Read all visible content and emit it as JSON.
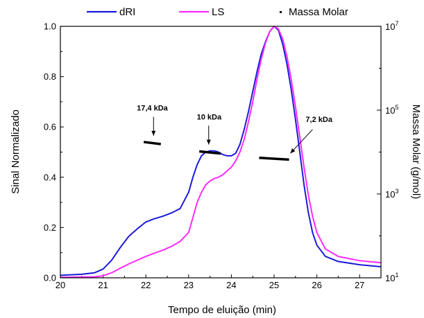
{
  "chart_data": {
    "type": "line",
    "xlabel": "Tempo de eluição (min)",
    "ylabel": "Sinal Normalizado",
    "y2label": "Massa Molar (g/mol)",
    "xlim": [
      20,
      27.5
    ],
    "ylim": [
      0,
      1.0
    ],
    "y2lim_log10": [
      1,
      7
    ],
    "grid": false,
    "legend_position": "top",
    "x_ticks": [
      "20",
      "21",
      "22",
      "23",
      "24",
      "25",
      "26",
      "27"
    ],
    "y_ticks": [
      "0.0",
      "0.2",
      "0.4",
      "0.6",
      "0.8",
      "1.0"
    ],
    "y2_ticks": [
      {
        "base": "10",
        "exp": "1",
        "value": 10
      },
      {
        "base": "10",
        "exp": "3",
        "value": 1000
      },
      {
        "base": "10",
        "exp": "5",
        "value": 100000
      },
      {
        "base": "10",
        "exp": "7",
        "value": 10000000
      }
    ],
    "series": [
      {
        "name": "dRI",
        "color": "#1a1adb",
        "points": [
          [
            20.0,
            0.01
          ],
          [
            20.5,
            0.014
          ],
          [
            20.8,
            0.02
          ],
          [
            21.0,
            0.035
          ],
          [
            21.2,
            0.07
          ],
          [
            21.4,
            0.12
          ],
          [
            21.6,
            0.165
          ],
          [
            21.8,
            0.195
          ],
          [
            22.0,
            0.222
          ],
          [
            22.2,
            0.235
          ],
          [
            22.4,
            0.245
          ],
          [
            22.6,
            0.258
          ],
          [
            22.8,
            0.275
          ],
          [
            23.0,
            0.34
          ],
          [
            23.1,
            0.4
          ],
          [
            23.2,
            0.45
          ],
          [
            23.3,
            0.485
          ],
          [
            23.4,
            0.5
          ],
          [
            23.5,
            0.505
          ],
          [
            23.6,
            0.505
          ],
          [
            23.7,
            0.5
          ],
          [
            23.8,
            0.49
          ],
          [
            23.9,
            0.485
          ],
          [
            24.0,
            0.485
          ],
          [
            24.1,
            0.495
          ],
          [
            24.2,
            0.53
          ],
          [
            24.3,
            0.59
          ],
          [
            24.4,
            0.66
          ],
          [
            24.5,
            0.74
          ],
          [
            24.6,
            0.82
          ],
          [
            24.7,
            0.89
          ],
          [
            24.8,
            0.94
          ],
          [
            24.9,
            0.98
          ],
          [
            25.0,
            1.0
          ],
          [
            25.1,
            0.985
          ],
          [
            25.2,
            0.93
          ],
          [
            25.3,
            0.85
          ],
          [
            25.4,
            0.75
          ],
          [
            25.5,
            0.63
          ],
          [
            25.6,
            0.5
          ],
          [
            25.7,
            0.37
          ],
          [
            25.8,
            0.26
          ],
          [
            25.9,
            0.18
          ],
          [
            26.0,
            0.13
          ],
          [
            26.2,
            0.085
          ],
          [
            26.5,
            0.065
          ],
          [
            27.0,
            0.052
          ],
          [
            27.5,
            0.044
          ]
        ]
      },
      {
        "name": "LS",
        "color": "#ff2aff",
        "points": [
          [
            20.0,
            0.002
          ],
          [
            20.8,
            0.004
          ],
          [
            21.0,
            0.008
          ],
          [
            21.2,
            0.02
          ],
          [
            21.4,
            0.038
          ],
          [
            21.6,
            0.055
          ],
          [
            21.8,
            0.07
          ],
          [
            22.0,
            0.085
          ],
          [
            22.2,
            0.098
          ],
          [
            22.4,
            0.11
          ],
          [
            22.6,
            0.125
          ],
          [
            22.8,
            0.145
          ],
          [
            23.0,
            0.18
          ],
          [
            23.1,
            0.24
          ],
          [
            23.2,
            0.3
          ],
          [
            23.3,
            0.34
          ],
          [
            23.4,
            0.37
          ],
          [
            23.5,
            0.385
          ],
          [
            23.6,
            0.395
          ],
          [
            23.7,
            0.4
          ],
          [
            23.8,
            0.41
          ],
          [
            23.9,
            0.425
          ],
          [
            24.0,
            0.44
          ],
          [
            24.1,
            0.465
          ],
          [
            24.2,
            0.5
          ],
          [
            24.3,
            0.55
          ],
          [
            24.4,
            0.62
          ],
          [
            24.5,
            0.7
          ],
          [
            24.6,
            0.79
          ],
          [
            24.7,
            0.87
          ],
          [
            24.8,
            0.935
          ],
          [
            24.9,
            0.98
          ],
          [
            25.0,
            1.0
          ],
          [
            25.1,
            0.99
          ],
          [
            25.2,
            0.95
          ],
          [
            25.3,
            0.88
          ],
          [
            25.4,
            0.79
          ],
          [
            25.5,
            0.68
          ],
          [
            25.6,
            0.56
          ],
          [
            25.7,
            0.44
          ],
          [
            25.8,
            0.33
          ],
          [
            25.9,
            0.245
          ],
          [
            26.0,
            0.18
          ],
          [
            26.2,
            0.115
          ],
          [
            26.5,
            0.085
          ],
          [
            27.0,
            0.068
          ],
          [
            27.5,
            0.06
          ]
        ]
      },
      {
        "name": "Massa Molar",
        "color": "#000000",
        "axis": "right",
        "segments": [
          {
            "x": [
              21.95,
              22.35
            ],
            "y": [
              17400,
              15500
            ]
          },
          {
            "x": [
              23.25,
              23.75
            ],
            "y": [
              10400,
              9200
            ]
          },
          {
            "x": [
              24.65,
              25.35
            ],
            "y": [
              7300,
              6600
            ]
          }
        ]
      }
    ],
    "annotations": [
      {
        "text": "17,4 kDa",
        "label_at": [
          22.15,
          0.665
        ],
        "arrow_from": [
          22.18,
          0.64
        ],
        "arrow_to": [
          22.18,
          0.565
        ]
      },
      {
        "text": "10 kDa",
        "label_at": [
          23.48,
          0.63
        ],
        "arrow_from": [
          23.47,
          0.605
        ],
        "arrow_to": [
          23.47,
          0.53
        ]
      },
      {
        "text": "7,2 kDa",
        "label_at": [
          26.05,
          0.62
        ],
        "arrow_from": [
          25.9,
          0.59
        ],
        "arrow_to": [
          25.38,
          0.495
        ]
      }
    ]
  }
}
